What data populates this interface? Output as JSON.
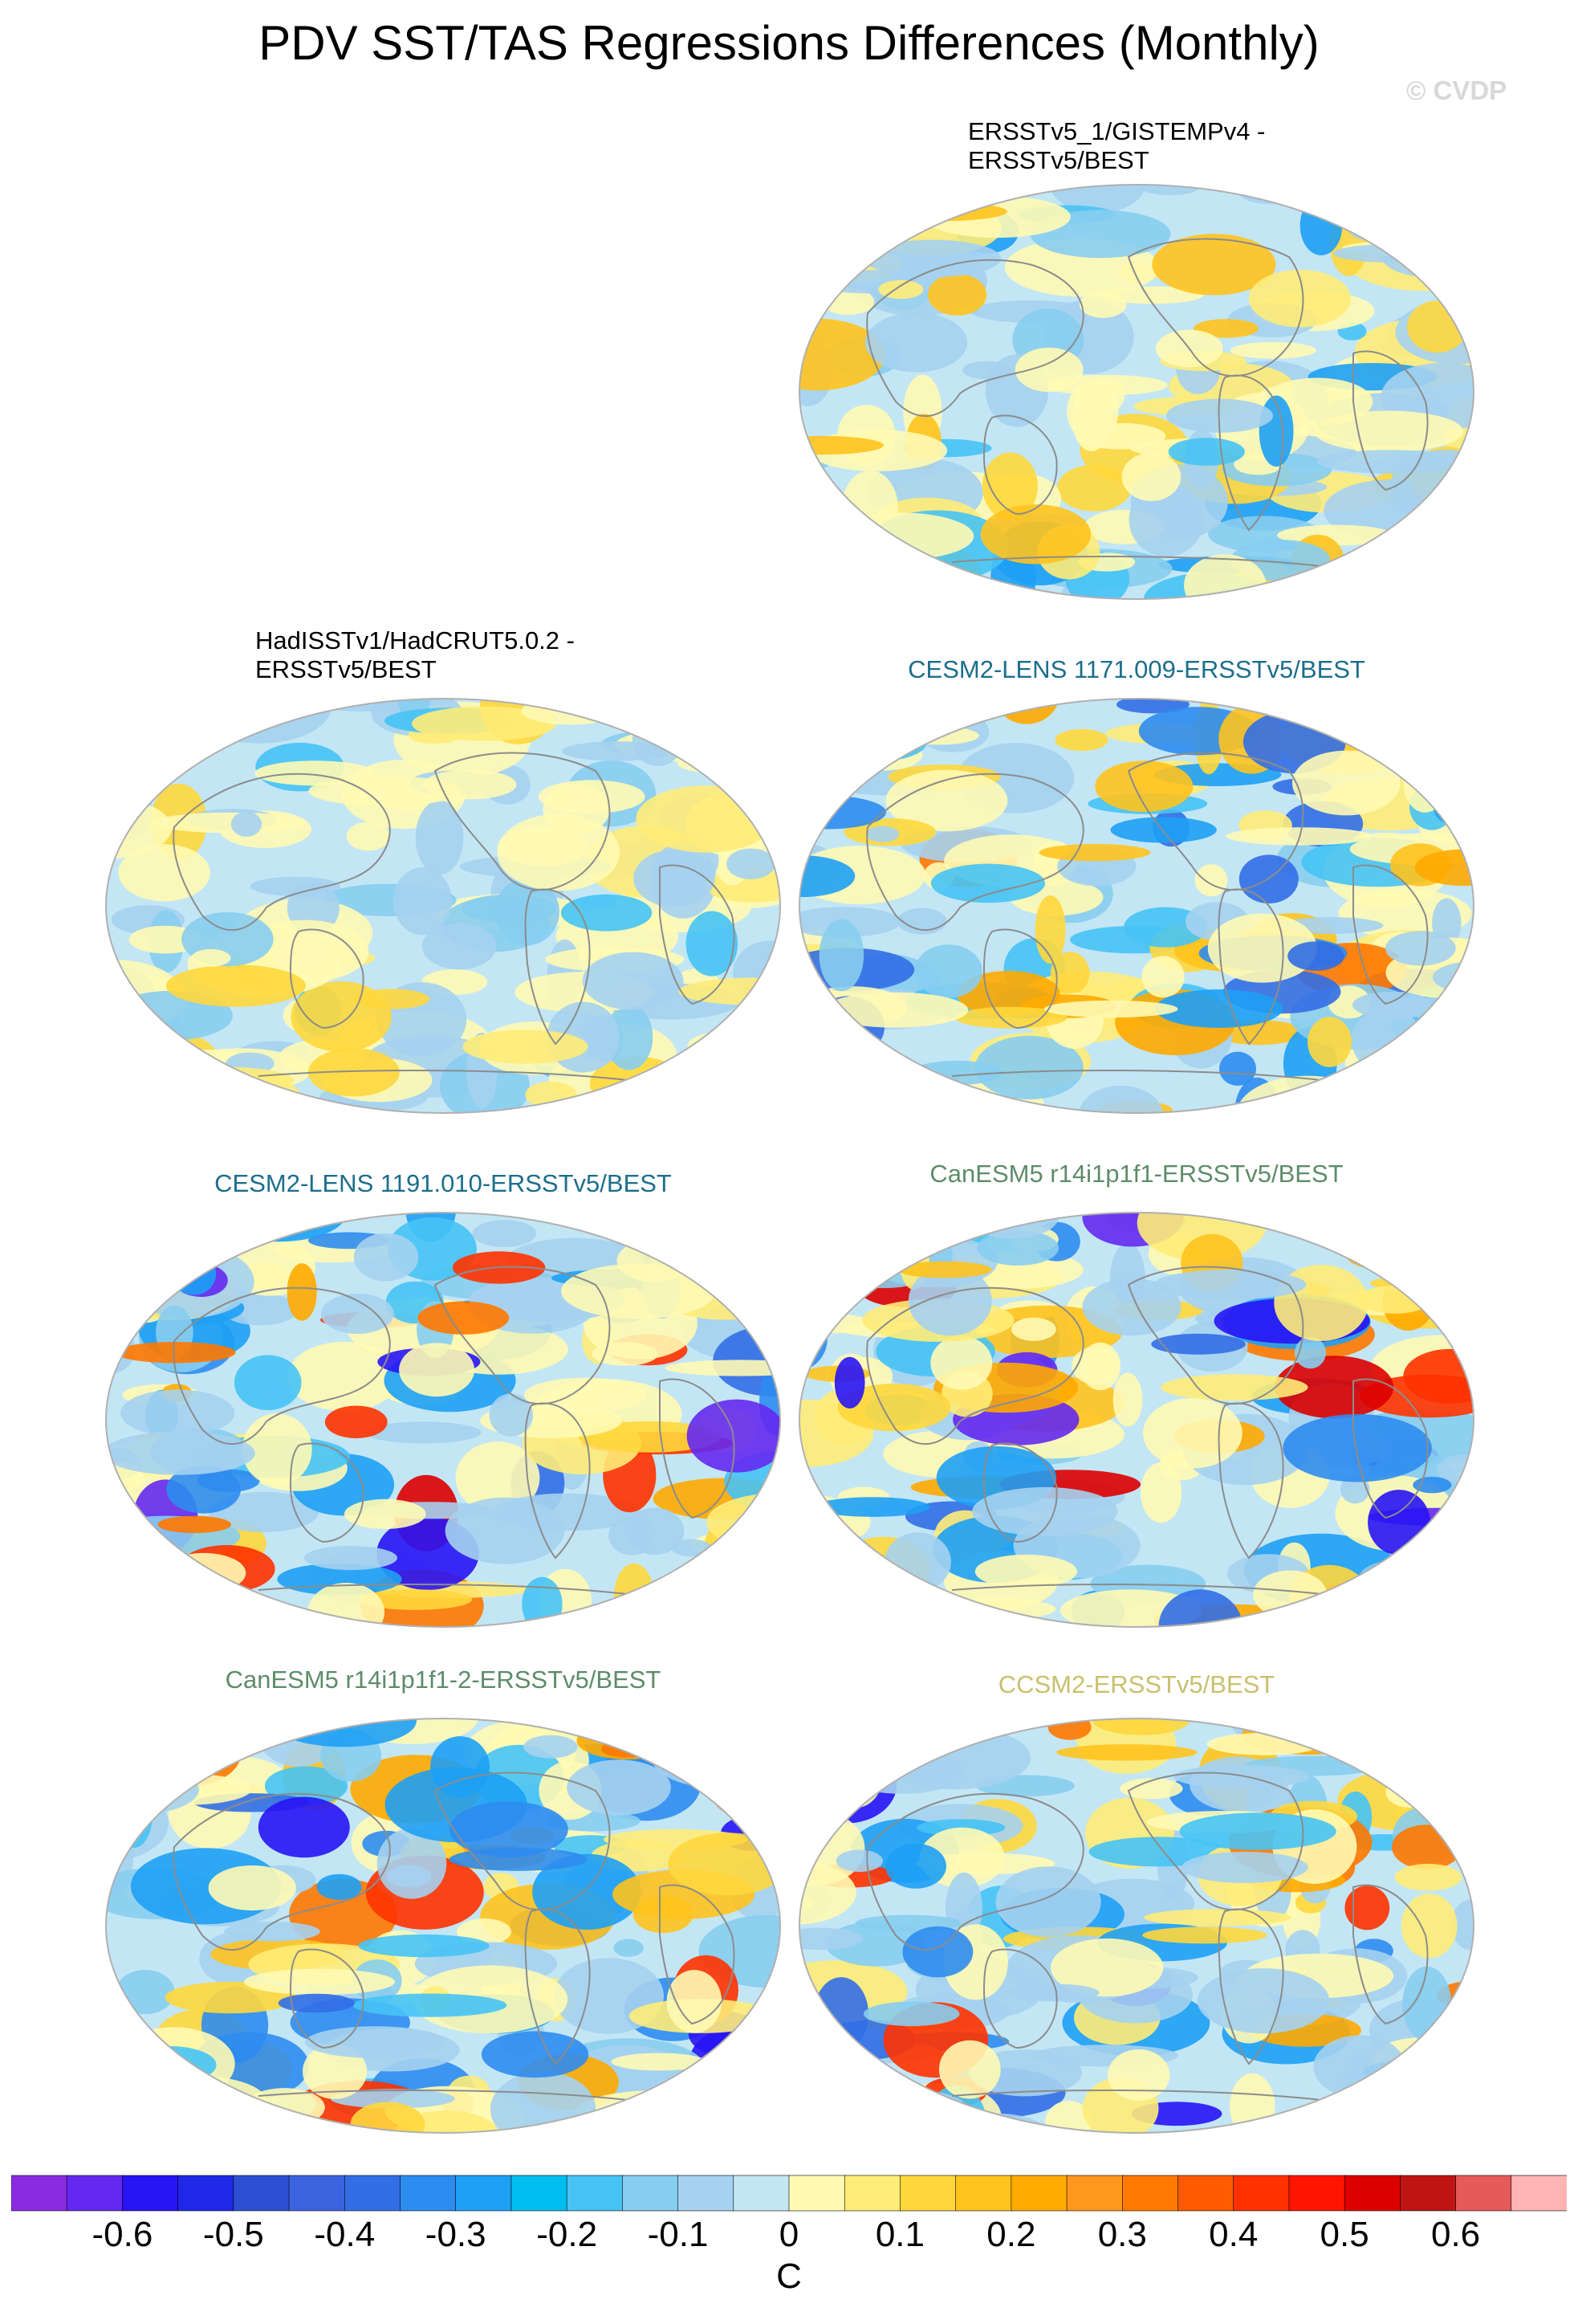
{
  "title": "PDV SST/TAS Regressions Differences (Monthly)",
  "watermark": "© CVDP",
  "panels": [
    {
      "id": "ersst-gistemp",
      "title_lines": [
        "ERSSTv5_1/GISTEMPv4 -",
        "ERSSTv5/BEST"
      ],
      "title_color": "#000000"
    },
    {
      "id": "hadisst-hadcrut",
      "title_lines": [
        "HadISSTv1/HadCRUT5.0.2 -",
        "ERSSTv5/BEST"
      ],
      "title_color": "#000000"
    },
    {
      "id": "cesm2-1171",
      "title_lines": [
        "CESM2-LENS 1171.009-ERSSTv5/BEST"
      ],
      "title_color": "#1c6e8c"
    },
    {
      "id": "cesm2-1191",
      "title_lines": [
        "CESM2-LENS 1191.010-ERSSTv5/BEST"
      ],
      "title_color": "#1c6e8c"
    },
    {
      "id": "canesm5-r14",
      "title_lines": [
        "CanESM5 r14i1p1f1-ERSSTv5/BEST"
      ],
      "title_color": "#5e8c6a"
    },
    {
      "id": "canesm5-r14-2",
      "title_lines": [
        "CanESM5 r14i1p1f1-2-ERSSTv5/BEST"
      ],
      "title_color": "#5e8c6a"
    },
    {
      "id": "ccsm2",
      "title_lines": [
        "CCSM2-ERSSTv5/BEST"
      ],
      "title_color": "#c8c06e"
    }
  ],
  "colorbar": {
    "unit": "C",
    "tick_labels": [
      "-0.6",
      "-0.5",
      "-0.4",
      "-0.3",
      "-0.2",
      "-0.1",
      "0",
      "0.1",
      "0.2",
      "0.3",
      "0.4",
      "0.5",
      "0.6"
    ],
    "colors": [
      "#8a2be2",
      "#6428f0",
      "#2814f5",
      "#1e28e6",
      "#2d50d2",
      "#3c64e1",
      "#326ee6",
      "#2d8cf0",
      "#1ea0f5",
      "#00bef0",
      "#46c3f5",
      "#87cdf0",
      "#a5d2f0",
      "#c3e6f5",
      "#fffab4",
      "#ffec78",
      "#ffd73c",
      "#ffc31e",
      "#ffaa00",
      "#ff961e",
      "#ff7800",
      "#ff5a00",
      "#ff3200",
      "#ff1400",
      "#dc0000",
      "#be1414",
      "#e65a5a",
      "#ffb4b4"
    ]
  }
}
